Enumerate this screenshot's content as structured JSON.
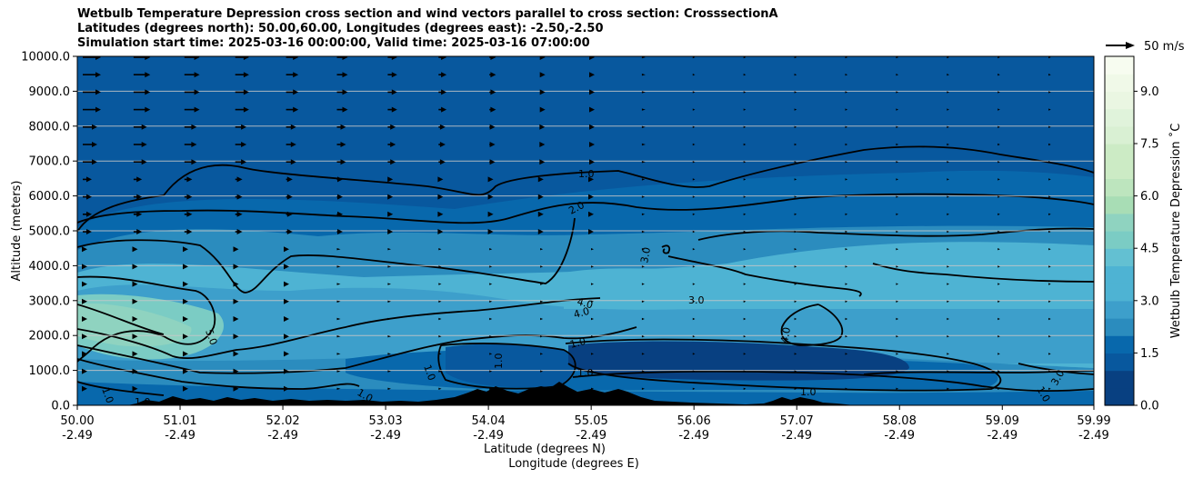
{
  "chart_data": {
    "type": "heatmap",
    "title": [
      "Wetbulb Temperature Depression cross section and wind vectors parallel to cross section: CrosssectionA",
      "Latitudes (degrees north): 50.00,60.00, Longitudes (degrees east): -2.50,-2.50",
      "Simulation start time: 2025-03-16 00:00:00, Valid time: 2025-03-16 07:00:00"
    ],
    "ylabel": "Altitude (meters)",
    "xlabel_lat": "Latitude (degrees N)",
    "xlabel_lon": "Longitude (degrees E)",
    "ylim": [
      0,
      10000
    ],
    "y_ticks": [
      "0.0",
      "1000.0",
      "2000.0",
      "3000.0",
      "4000.0",
      "5000.0",
      "6000.0",
      "7000.0",
      "8000.0",
      "9000.0",
      "10000.0"
    ],
    "x_ticks": [
      {
        "lat": "50.00",
        "lon": "-2.49"
      },
      {
        "lat": "51.01",
        "lon": "-2.49"
      },
      {
        "lat": "52.02",
        "lon": "-2.49"
      },
      {
        "lat": "53.03",
        "lon": "-2.49"
      },
      {
        "lat": "54.04",
        "lon": "-2.49"
      },
      {
        "lat": "55.05",
        "lon": "-2.49"
      },
      {
        "lat": "56.06",
        "lon": "-2.49"
      },
      {
        "lat": "57.07",
        "lon": "-2.49"
      },
      {
        "lat": "58.08",
        "lon": "-2.49"
      },
      {
        "lat": "59.09",
        "lon": "-2.49"
      },
      {
        "lat": "59.99",
        "lon": "-2.49"
      }
    ],
    "colorbar": {
      "label": "Wetbulb Temperature Depression ˚C",
      "range": [
        0,
        10
      ],
      "ticks": [
        "0.0",
        "1.5",
        "3.0",
        "4.5",
        "6.0",
        "7.5",
        "9.0"
      ],
      "colormap": "GnBu_r"
    },
    "wind_key": "50 m/s",
    "contour_labels": [
      "1.0",
      "2.0",
      "3.0",
      "4.0",
      "5.0"
    ],
    "grid": true
  }
}
